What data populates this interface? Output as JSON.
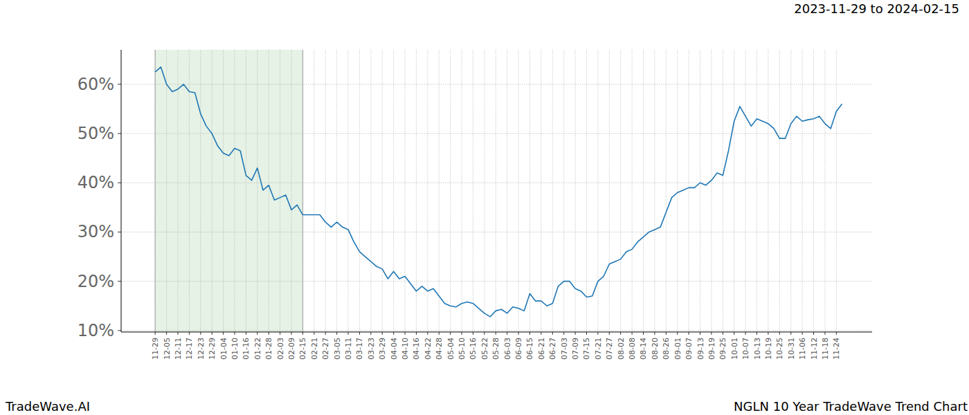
{
  "chart_data": {
    "type": "line",
    "title": "2023-11-29 to 2024-02-15",
    "source": "TradeWave.AI",
    "caption": "NGLN 10 Year TradeWave Trend Chart",
    "highlight": {
      "start": "11-29",
      "end": "02-15"
    },
    "categories": [
      "11-29",
      null,
      "12-05",
      null,
      "12-11",
      null,
      "12-17",
      null,
      "12-23",
      null,
      "12-29",
      null,
      "01-04",
      null,
      "01-10",
      null,
      "01-16",
      null,
      "01-22",
      null,
      "01-28",
      null,
      "02-03",
      null,
      "02-09",
      null,
      "02-15",
      null,
      "02-21",
      null,
      "02-27",
      null,
      "03-05",
      null,
      "03-11",
      null,
      "03-17",
      null,
      "03-23",
      null,
      "03-29",
      null,
      "04-04",
      null,
      "04-10",
      null,
      "04-16",
      null,
      "04-22",
      null,
      "04-28",
      null,
      "05-04",
      null,
      "05-10",
      null,
      "05-16",
      null,
      "05-22",
      null,
      "05-28",
      null,
      "06-03",
      null,
      "06-09",
      null,
      "06-15",
      null,
      "06-21",
      null,
      "06-27",
      null,
      "07-03",
      null,
      "07-09",
      null,
      "07-15",
      null,
      "07-21",
      null,
      "07-27",
      null,
      "08-02",
      null,
      "08-08",
      null,
      "08-14",
      null,
      "08-20",
      null,
      "08-26",
      null,
      "09-01",
      null,
      "09-07",
      null,
      "09-13",
      null,
      "09-19",
      null,
      "09-25",
      null,
      "10-01",
      null,
      "10-07",
      null,
      "10-13",
      null,
      "10-19",
      null,
      "10-25",
      null,
      "10-31",
      null,
      "11-06",
      null,
      "11-12",
      null,
      "11-18",
      null,
      "11-24",
      null
    ],
    "series": [
      {
        "color": "#1f77b4",
        "values": [
          62.5,
          63.5,
          60,
          58.5,
          59,
          60,
          58.5,
          58.3,
          54,
          51.5,
          50,
          47.5,
          46,
          45.5,
          47,
          46.5,
          41.5,
          40.5,
          43,
          38.5,
          39.5,
          36.5,
          37,
          37.5,
          34.5,
          35.5,
          33.5,
          33.5,
          33.5,
          33.5,
          32,
          31,
          32,
          31,
          30.5,
          28,
          26,
          25,
          24,
          23,
          22.5,
          20.5,
          22,
          20.5,
          21,
          19.5,
          18,
          19,
          18,
          18.5,
          17,
          15.5,
          15,
          14.8,
          15.5,
          15.8,
          15.5,
          14.5,
          13.5,
          12.8,
          14,
          14.3,
          13.5,
          14.8,
          14.5,
          14,
          17.5,
          16,
          16,
          15,
          15.5,
          19,
          20,
          20,
          18.5,
          18,
          16.8,
          17,
          20,
          21,
          23.5,
          24,
          24.5,
          26,
          26.5,
          28,
          29,
          30,
          30.5,
          31,
          34,
          37,
          38,
          38.5,
          39,
          39,
          40,
          39.5,
          40.5,
          42,
          41.5,
          46.5,
          52.5,
          55.5,
          53.5,
          51.5,
          53,
          52.5,
          52,
          51,
          49,
          49,
          52,
          53.5,
          52.5,
          52.8,
          53,
          53.5,
          52,
          51,
          54.5,
          56
        ]
      }
    ],
    "ylim": [
      9.7,
      67
    ],
    "yticks": [
      {
        "value": 10,
        "label": "10%"
      },
      {
        "value": 20,
        "label": "20%"
      },
      {
        "value": 30,
        "label": "30%"
      },
      {
        "value": 40,
        "label": "40%"
      },
      {
        "value": 50,
        "label": "50%"
      },
      {
        "value": 60,
        "label": "60%"
      }
    ],
    "grid": true
  }
}
